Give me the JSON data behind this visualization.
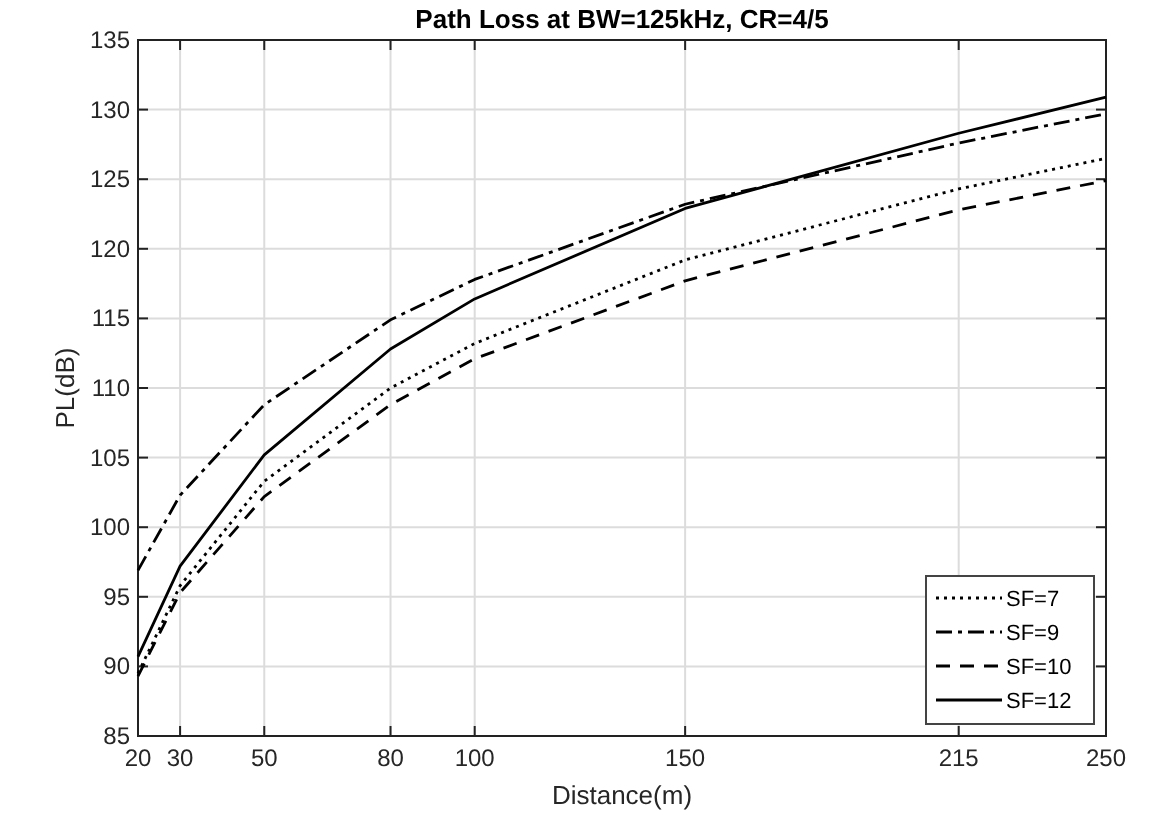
{
  "chart_data": {
    "type": "line",
    "title": "Path Loss at BW=125kHz, CR=4/5",
    "xlabel": "Distance(m)",
    "ylabel": "PL(dB)",
    "x": [
      20,
      30,
      50,
      80,
      100,
      150,
      215,
      250
    ],
    "series": [
      {
        "name": "SF=7",
        "color": "#000000",
        "line_style": "dotted",
        "values": [
          89.5,
          95.8,
          103.3,
          110,
          113.2,
          119.2,
          124.3,
          126.5
        ]
      },
      {
        "name": "SF=9",
        "color": "#000000",
        "line_style": "dashdot",
        "values": [
          96.9,
          102.3,
          108.8,
          114.9,
          117.8,
          123.2,
          127.6,
          129.7
        ]
      },
      {
        "name": "SF=10",
        "color": "#000000",
        "line_style": "dashed",
        "values": [
          89.3,
          95.3,
          102.2,
          108.8,
          112.1,
          117.7,
          122.8,
          124.9
        ]
      },
      {
        "name": "SF=12",
        "color": "#000000",
        "line_style": "solid",
        "values": [
          90.7,
          97.2,
          105.2,
          112.8,
          116.4,
          122.9,
          128.3,
          130.9
        ]
      }
    ],
    "xlim": [
      20,
      250
    ],
    "xticks": [
      20,
      30,
      50,
      80,
      100,
      150,
      215,
      250
    ],
    "ylim": [
      85,
      135
    ],
    "yticks": [
      85,
      90,
      95,
      100,
      105,
      110,
      115,
      120,
      125,
      130,
      135
    ],
    "grid": true,
    "legend": "bottom right"
  }
}
